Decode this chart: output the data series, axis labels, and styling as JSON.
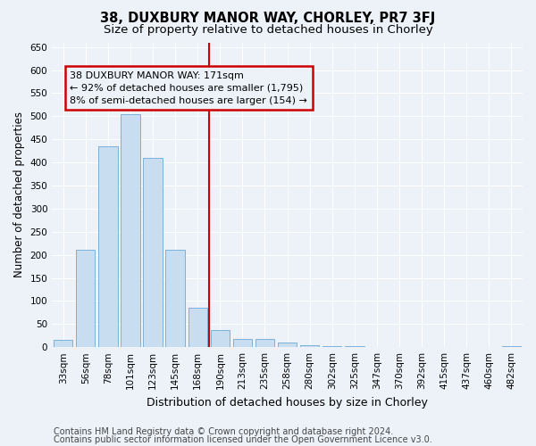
{
  "title": "38, DUXBURY MANOR WAY, CHORLEY, PR7 3FJ",
  "subtitle": "Size of property relative to detached houses in Chorley",
  "xlabel": "Distribution of detached houses by size in Chorley",
  "ylabel": "Number of detached properties",
  "categories": [
    "33sqm",
    "56sqm",
    "78sqm",
    "101sqm",
    "123sqm",
    "145sqm",
    "168sqm",
    "190sqm",
    "213sqm",
    "235sqm",
    "258sqm",
    "280sqm",
    "302sqm",
    "325sqm",
    "347sqm",
    "370sqm",
    "392sqm",
    "415sqm",
    "437sqm",
    "460sqm",
    "482sqm"
  ],
  "values": [
    15,
    210,
    435,
    505,
    410,
    210,
    85,
    38,
    18,
    18,
    10,
    5,
    3,
    2,
    1,
    1,
    1,
    0,
    0,
    0,
    3
  ],
  "bar_color": "#c9ddf0",
  "bar_edge_color": "#6aaad4",
  "bar_width": 0.85,
  "vline_x": 6.5,
  "vline_color": "#cc0000",
  "annotation_text": "38 DUXBURY MANOR WAY: 171sqm\n← 92% of detached houses are smaller (1,795)\n8% of semi-detached houses are larger (154) →",
  "annotation_box_color": "#cc0000",
  "ylim": [
    0,
    660
  ],
  "yticks": [
    0,
    50,
    100,
    150,
    200,
    250,
    300,
    350,
    400,
    450,
    500,
    550,
    600,
    650
  ],
  "footer1": "Contains HM Land Registry data © Crown copyright and database right 2024.",
  "footer2": "Contains public sector information licensed under the Open Government Licence v3.0.",
  "background_color": "#edf2f9",
  "grid_color": "#ffffff",
  "title_fontsize": 10.5,
  "subtitle_fontsize": 9.5,
  "xlabel_fontsize": 9,
  "ylabel_fontsize": 8.5,
  "tick_fontsize": 7.5,
  "annotation_fontsize": 8,
  "footer_fontsize": 7
}
